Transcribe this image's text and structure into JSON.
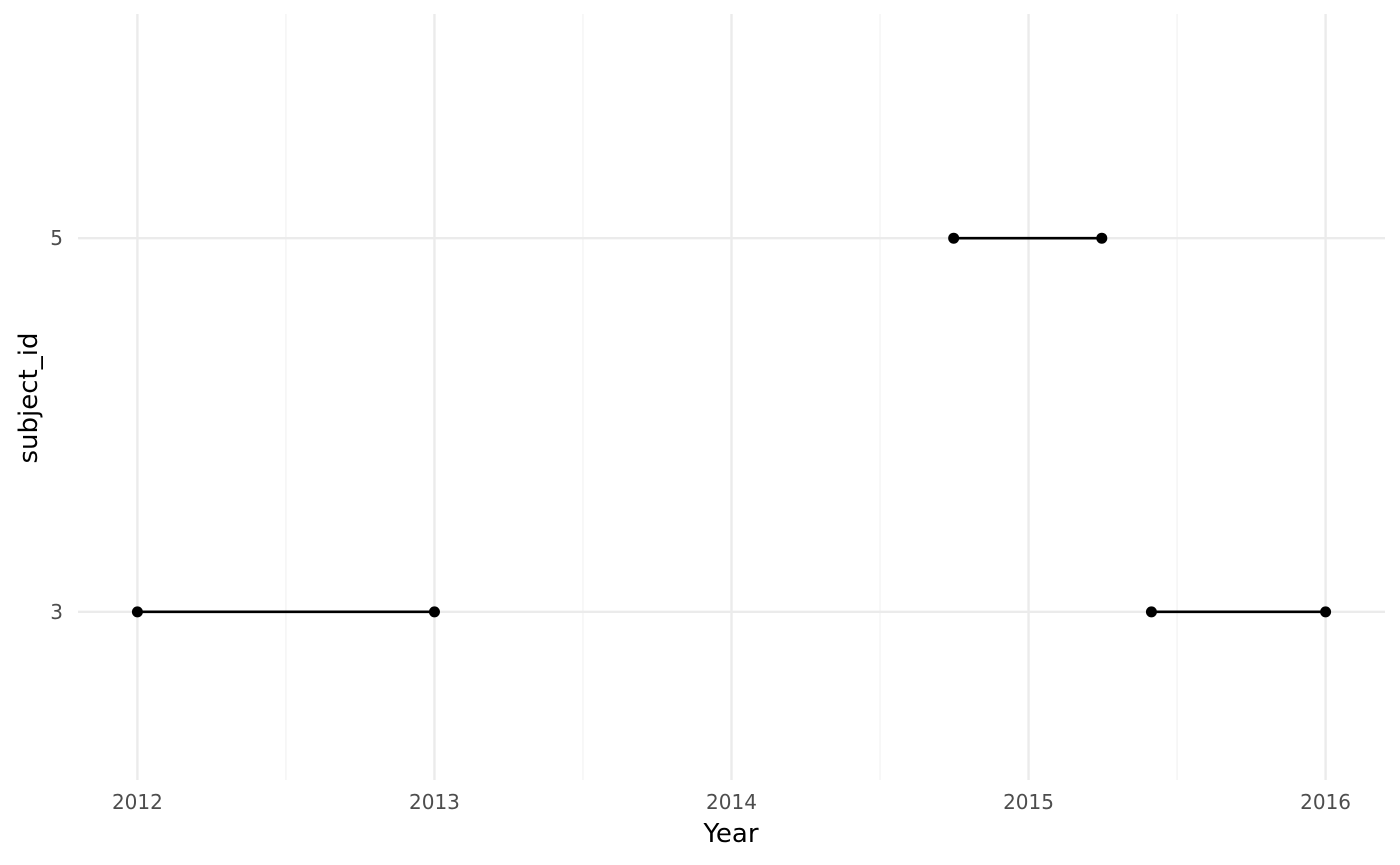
{
  "chart_data": {
    "type": "segment",
    "xlabel": "Year",
    "ylabel": "subject_id",
    "x_ticks": [
      2012,
      2013,
      2014,
      2015,
      2016
    ],
    "x_minor_ticks": [
      2012.5,
      2013.5,
      2014.5,
      2015.5
    ],
    "y_ticks": [
      3,
      5
    ],
    "xlim": [
      2011.8,
      2016.2
    ],
    "ylim": [
      2.1,
      6.2
    ],
    "grid": true,
    "segments": [
      {
        "subject_id": 3,
        "start": "2012-01-01",
        "end": "2013-01-01"
      },
      {
        "subject_id": 5,
        "start": "2014-10-01",
        "end": "2015-04-01"
      },
      {
        "subject_id": 3,
        "start": "2015-06-01",
        "end": "2016-01-01"
      }
    ],
    "colors": {
      "marks": "#000000",
      "grid": "#ebebeb",
      "tick_text": "#4d4d4d"
    }
  }
}
